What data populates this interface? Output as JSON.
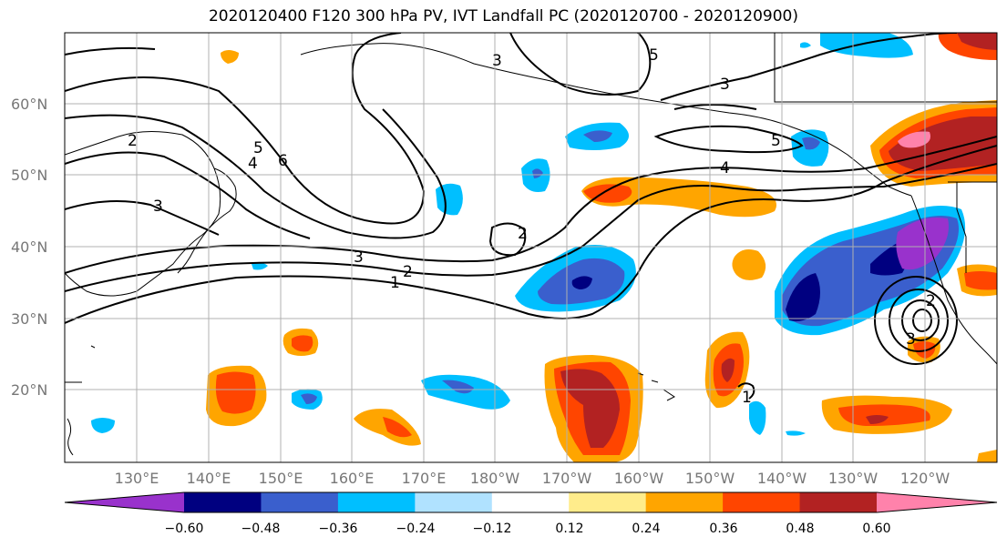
{
  "title": "2020120400 F120 300 hPa PV, IVT Landfall PC (2020120700 - 2020120900)",
  "map": {
    "lon_labels": [
      "130°E",
      "140°E",
      "150°E",
      "160°E",
      "170°E",
      "180°W",
      "170°W",
      "160°W",
      "150°W",
      "140°W",
      "130°W",
      "120°W"
    ],
    "lat_labels": [
      "60°N",
      "50°N",
      "40°N",
      "30°N",
      "20°N"
    ],
    "contour_labels": [
      "2",
      "5",
      "6",
      "4",
      "3",
      "3",
      "2",
      "1",
      "2",
      "3",
      "5",
      "4",
      "5",
      "3",
      "1",
      "2",
      "3"
    ]
  },
  "colorbar": {
    "tick_labels": [
      "−0.60",
      "−0.48",
      "−0.36",
      "−0.24",
      "−0.12",
      "0.12",
      "0.24",
      "0.36",
      "0.48",
      "0.60"
    ],
    "colors": [
      "#9932cc",
      "#000080",
      "#3a5fcd",
      "#00bfff",
      "#b0e2ff",
      "#ffffff",
      "#ffec8b",
      "#ffa500",
      "#ff4500",
      "#b22222",
      "#ff82ab"
    ]
  },
  "legend_colors": {
    "land_outline": "#000000",
    "grid": "#b0b0b0"
  }
}
